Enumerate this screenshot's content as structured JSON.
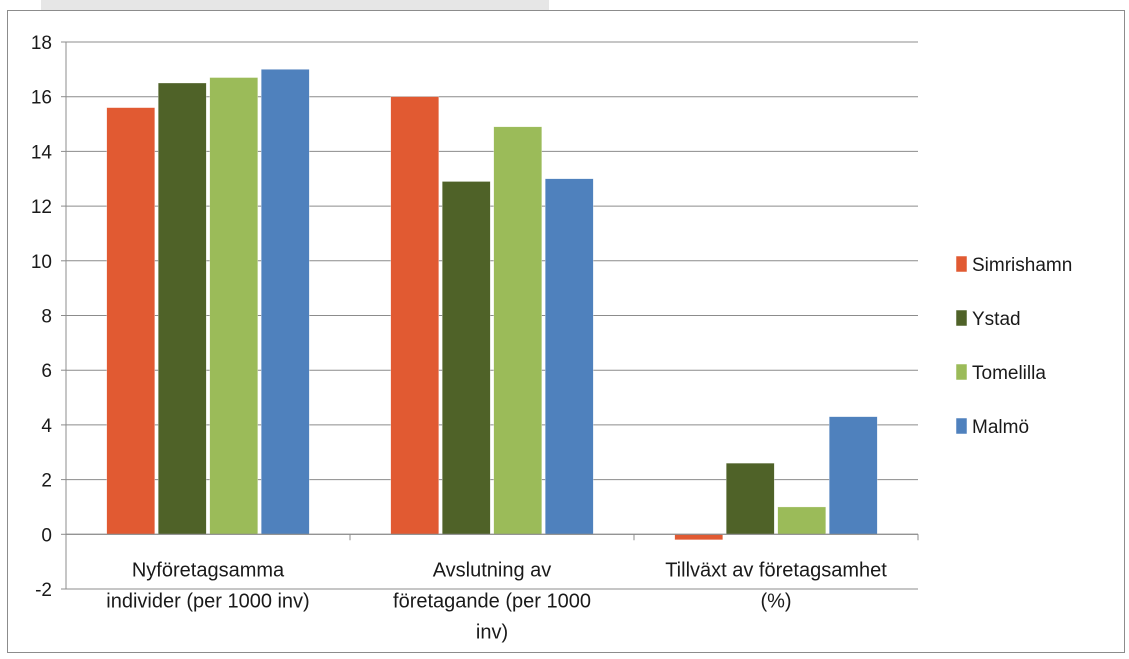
{
  "chart_data": {
    "type": "bar",
    "categories": [
      [
        "Nyföretagsamma",
        "individer (per 1000 inv)"
      ],
      [
        "Avslutning av",
        "företagande (per 1000",
        "inv)"
      ],
      [
        "Tillväxt av företagsamhet",
        "(%)"
      ]
    ],
    "series": [
      {
        "name": "Simrishamn",
        "color": "#e15a32",
        "values": [
          15.6,
          16.0,
          -0.2
        ]
      },
      {
        "name": "Ystad",
        "color": "#4f6228",
        "values": [
          16.5,
          12.9,
          2.6
        ]
      },
      {
        "name": "Tomelilla",
        "color": "#9bbb59",
        "values": [
          16.7,
          14.9,
          1.0
        ]
      },
      {
        "name": "Malmö",
        "color": "#4f81bd",
        "values": [
          17.0,
          13.0,
          4.3
        ]
      }
    ],
    "ylim": [
      -2,
      18
    ],
    "yticks": [
      18,
      16,
      14,
      12,
      10,
      8,
      6,
      4,
      2,
      0,
      -2
    ],
    "grid": true,
    "legend_position": "right"
  }
}
